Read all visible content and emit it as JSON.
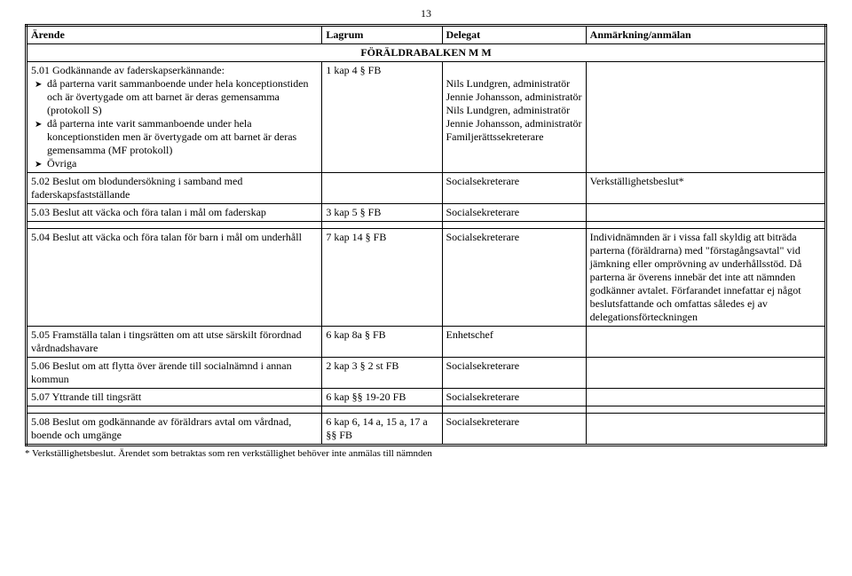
{
  "pageNumber": "13",
  "header": {
    "col1": "Ärende",
    "col2": "Lagrum",
    "col3": "Delegat",
    "col4": "Anmärkning/anmälan"
  },
  "sectionTitle": "FÖRÄLDRABALKEN M M",
  "row501": {
    "num": "5.01",
    "title": "Godkännande av faderskapserkännande:",
    "b1": "då parterna varit sammanboende under hela konceptionstiden och är övertygade om att barnet är deras gemensamma (protokoll S)",
    "b2": "då parterna inte varit sammanboende under hela konceptionstiden men är övertygade om att barnet är deras gemensamma (MF protokoll)",
    "b3": "Övriga",
    "lagrum": "1 kap 4 § FB",
    "d1": "Nils Lundgren, administratör",
    "d2": "Jennie Johansson, administratör",
    "d3": "Nils Lundgren, administratör",
    "d4": "Jennie Johansson, administratör",
    "d5": "Familjerättssekreterare"
  },
  "row502": {
    "num": "5.02",
    "title": "Beslut om blodundersökning i samband med faderskapsfastställande",
    "lagrum": "",
    "delegat": "Socialsekreterare",
    "anmark": "Verkställighetsbeslut*"
  },
  "row503": {
    "num": "5.03",
    "title": "Beslut att väcka och föra talan i mål om faderskap",
    "lagrum": "3 kap 5 § FB",
    "delegat": "Socialsekreterare",
    "anmark": ""
  },
  "row504": {
    "num": "5.04",
    "title": "Beslut att väcka och föra talan för barn i mål om underhåll",
    "lagrum": "7 kap 14 § FB",
    "delegat": "Socialsekreterare",
    "anmark": "Individnämnden är i vissa fall skyldig att biträda parterna (föräldrarna) med \"förstagångsavtal\" vid jämkning eller omprövning av underhållsstöd. Då parterna är överens innebär det inte att nämnden godkänner avtalet. Förfarandet innefattar ej något beslutsfattande och omfattas således ej av delegationsförteckningen"
  },
  "row505": {
    "num": "5.05",
    "title": "Framställa talan i tingsrätten om att utse särskilt förordnad vårdnadshavare",
    "lagrum": "6 kap 8a § FB",
    "delegat": "Enhetschef",
    "anmark": ""
  },
  "row506": {
    "num": "5.06",
    "title": "Beslut om att flytta över ärende till socialnämnd i annan kommun",
    "lagrum": "2 kap 3 § 2 st FB",
    "delegat": "Socialsekreterare",
    "anmark": ""
  },
  "row507": {
    "num": "5.07",
    "title": "Yttrande till tingsrätt",
    "lagrum": "6 kap §§ 19-20 FB",
    "delegat": "Socialsekreterare",
    "anmark": ""
  },
  "row508": {
    "num": "5.08",
    "title": "Beslut om godkännande av föräldrars avtal om vårdnad, boende och umgänge",
    "lagrum": "6 kap 6, 14 a, 15 a, 17 a §§ FB",
    "delegat": "Socialsekreterare",
    "anmark": ""
  },
  "footnote": "* Verkställighetsbeslut. Ärendet som betraktas som ren verkställighet behöver inte anmälas till nämnden"
}
